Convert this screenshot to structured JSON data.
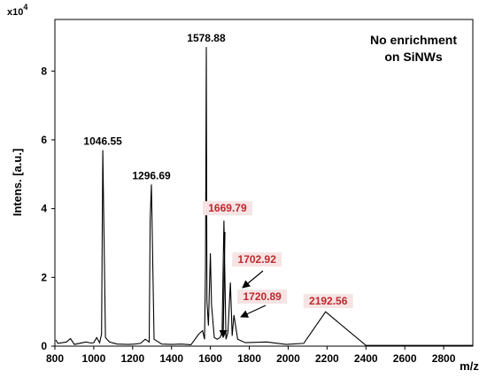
{
  "chart_data": {
    "type": "line",
    "title": "",
    "annotation_lines": [
      "No enrichment",
      "on SiNWs"
    ],
    "xlabel": "m/z",
    "ylabel": "Intens. [a.u.]",
    "y_multiplier_base": "x10",
    "y_multiplier_exp": "4",
    "xlim": [
      800,
      2950
    ],
    "ylim": [
      0,
      9.5
    ],
    "x_ticks": [
      800,
      1000,
      1200,
      1400,
      1600,
      1800,
      2000,
      2200,
      2400,
      2600,
      2800
    ],
    "y_ticks": [
      0,
      2,
      4,
      6,
      8
    ],
    "grid": false,
    "legend": "none",
    "series": [
      {
        "x": [
          805,
          815,
          860,
          880,
          900,
          960,
          985,
          1000,
          1015,
          1030,
          1040,
          1046.55,
          1060,
          1080,
          1120,
          1180,
          1210,
          1240,
          1265,
          1285,
          1290,
          1296.69,
          1310,
          1350,
          1400,
          1450,
          1500,
          1540,
          1560,
          1570,
          1575,
          1578.88,
          1582,
          1590,
          1600,
          1606,
          1620,
          1635,
          1650,
          1660,
          1669.79,
          1680,
          1690,
          1702.92,
          1712,
          1720.89,
          1740,
          1780,
          1890,
          1990,
          2080,
          2192.56,
          2400,
          2600,
          2800,
          2950
        ],
        "y": [
          0.18,
          0.08,
          0.12,
          0.22,
          0.05,
          0.12,
          0.09,
          0.1,
          0.25,
          0.1,
          0.35,
          5.7,
          0.25,
          0.12,
          0.06,
          0.05,
          0.06,
          0.08,
          0.2,
          0.12,
          3.7,
          4.7,
          0.2,
          0.06,
          0.05,
          0.06,
          0.04,
          0.35,
          0.45,
          0.2,
          2.3,
          8.7,
          1.3,
          0.6,
          2.7,
          1.2,
          0.25,
          0.2,
          0.25,
          0.4,
          3.65,
          0.2,
          0.4,
          1.85,
          0.3,
          0.9,
          0.2,
          0.1,
          0.12,
          0.05,
          0.08,
          1.0,
          0.02,
          0.02,
          0.02,
          0.02
        ],
        "color": "#000000"
      }
    ],
    "peak_labels": [
      {
        "x": 1046.55,
        "y": 5.7,
        "text": "1046.55",
        "color": "#000000"
      },
      {
        "x": 1296.69,
        "y": 4.7,
        "text": "1296.69",
        "color": "#000000"
      },
      {
        "x": 1578.88,
        "y": 8.7,
        "text": "1578.88",
        "color": "#000000"
      },
      {
        "x": 1669.79,
        "y": 3.65,
        "text": "1669.79",
        "color": "#c0282d"
      },
      {
        "x": 1702.92,
        "y": 1.85,
        "text": "1702.92",
        "color": "#c0282d"
      },
      {
        "x": 1720.89,
        "y": 0.9,
        "text": "1720.89",
        "color": "#c0282d"
      },
      {
        "x": 2192.56,
        "y": 1.0,
        "text": "2192.56",
        "color": "#c0282d"
      }
    ]
  }
}
